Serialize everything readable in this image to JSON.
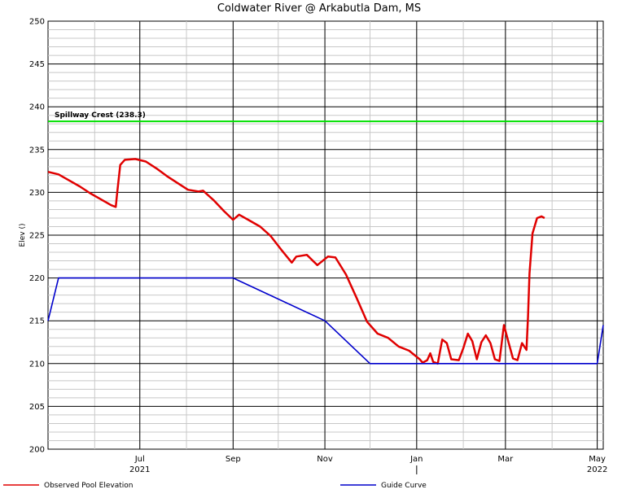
{
  "chart_data": {
    "type": "line",
    "title": "Coldwater River @ Arkabutla Dam, MS",
    "ylabel": "Elev ()",
    "xlabel": "",
    "ylim": [
      200,
      250
    ],
    "yticks": [
      200,
      205,
      210,
      215,
      220,
      225,
      230,
      235,
      240,
      245,
      250
    ],
    "xlim": [
      "2021-05-01",
      "2022-05-05"
    ],
    "xticks": [
      {
        "label": "Jul",
        "date": "2021-07-01"
      },
      {
        "label": "Sep",
        "date": "2021-09-01"
      },
      {
        "label": "Nov",
        "date": "2021-11-01"
      },
      {
        "label": "Jan",
        "date": "2022-01-01"
      },
      {
        "label": "Mar",
        "date": "2022-03-01"
      },
      {
        "label": "May",
        "date": "2022-05-01"
      }
    ],
    "year_labels": [
      {
        "label": "2021",
        "date": "2021-07-01"
      },
      {
        "label": "2022",
        "date": "2022-05-01"
      }
    ],
    "year_marker_date": "2022-01-01",
    "grid": true,
    "legend": "bottom",
    "annotations": [
      {
        "text": "Spillway Crest (238.3)",
        "y": 238.3,
        "color": "#00e000"
      }
    ],
    "series": [
      {
        "name": "Observed Pool Elevation",
        "color": "#e00000",
        "points": [
          [
            "2021-05-01",
            232.4
          ],
          [
            "2021-05-08",
            232.1
          ],
          [
            "2021-05-15",
            231.4
          ],
          [
            "2021-05-22",
            230.7
          ],
          [
            "2021-05-29",
            229.9
          ],
          [
            "2021-06-05",
            229.2
          ],
          [
            "2021-06-12",
            228.5
          ],
          [
            "2021-06-15",
            228.3
          ],
          [
            "2021-06-16",
            230.0
          ],
          [
            "2021-06-18",
            233.2
          ],
          [
            "2021-06-21",
            233.8
          ],
          [
            "2021-06-28",
            233.9
          ],
          [
            "2021-07-05",
            233.6
          ],
          [
            "2021-07-12",
            232.8
          ],
          [
            "2021-07-19",
            231.9
          ],
          [
            "2021-07-26",
            231.1
          ],
          [
            "2021-08-02",
            230.3
          ],
          [
            "2021-08-09",
            230.1
          ],
          [
            "2021-08-12",
            230.2
          ],
          [
            "2021-08-19",
            229.1
          ],
          [
            "2021-08-26",
            227.8
          ],
          [
            "2021-09-01",
            226.8
          ],
          [
            "2021-09-05",
            227.4
          ],
          [
            "2021-09-12",
            226.7
          ],
          [
            "2021-09-19",
            226.0
          ],
          [
            "2021-09-26",
            224.9
          ],
          [
            "2021-10-03",
            223.3
          ],
          [
            "2021-10-10",
            221.8
          ],
          [
            "2021-10-13",
            222.5
          ],
          [
            "2021-10-20",
            222.7
          ],
          [
            "2021-10-27",
            221.5
          ],
          [
            "2021-11-03",
            222.5
          ],
          [
            "2021-11-08",
            222.4
          ],
          [
            "2021-11-15",
            220.4
          ],
          [
            "2021-11-22",
            217.7
          ],
          [
            "2021-11-29",
            214.9
          ],
          [
            "2021-12-06",
            213.5
          ],
          [
            "2021-12-13",
            213.0
          ],
          [
            "2021-12-20",
            212.0
          ],
          [
            "2021-12-27",
            211.5
          ],
          [
            "2022-01-03",
            210.5
          ],
          [
            "2022-01-05",
            210.1
          ],
          [
            "2022-01-08",
            210.4
          ],
          [
            "2022-01-10",
            211.2
          ],
          [
            "2022-01-12",
            210.2
          ],
          [
            "2022-01-15",
            210.0
          ],
          [
            "2022-01-18",
            212.8
          ],
          [
            "2022-01-21",
            212.4
          ],
          [
            "2022-01-24",
            210.5
          ],
          [
            "2022-01-29",
            210.4
          ],
          [
            "2022-02-01",
            211.8
          ],
          [
            "2022-02-04",
            213.5
          ],
          [
            "2022-02-07",
            212.6
          ],
          [
            "2022-02-10",
            210.5
          ],
          [
            "2022-02-13",
            212.5
          ],
          [
            "2022-02-16",
            213.3
          ],
          [
            "2022-02-19",
            212.4
          ],
          [
            "2022-02-22",
            210.5
          ],
          [
            "2022-02-25",
            210.3
          ],
          [
            "2022-02-28",
            214.5
          ],
          [
            "2022-03-03",
            212.5
          ],
          [
            "2022-03-06",
            210.6
          ],
          [
            "2022-03-09",
            210.4
          ],
          [
            "2022-03-12",
            212.4
          ],
          [
            "2022-03-15",
            211.6
          ],
          [
            "2022-03-16",
            215.5
          ],
          [
            "2022-03-17",
            220.5
          ],
          [
            "2022-03-19",
            225.2
          ],
          [
            "2022-03-22",
            227.0
          ],
          [
            "2022-03-25",
            227.2
          ],
          [
            "2022-03-27",
            227.0
          ]
        ]
      },
      {
        "name": "Guide Curve",
        "color": "#0000cc",
        "points": [
          [
            "2021-05-01",
            215.0
          ],
          [
            "2021-05-08",
            220.0
          ],
          [
            "2021-09-01",
            220.0
          ],
          [
            "2021-11-01",
            215.0
          ],
          [
            "2021-12-01",
            210.0
          ],
          [
            "2022-05-01",
            210.0
          ],
          [
            "2022-05-05",
            214.5
          ]
        ]
      }
    ]
  }
}
